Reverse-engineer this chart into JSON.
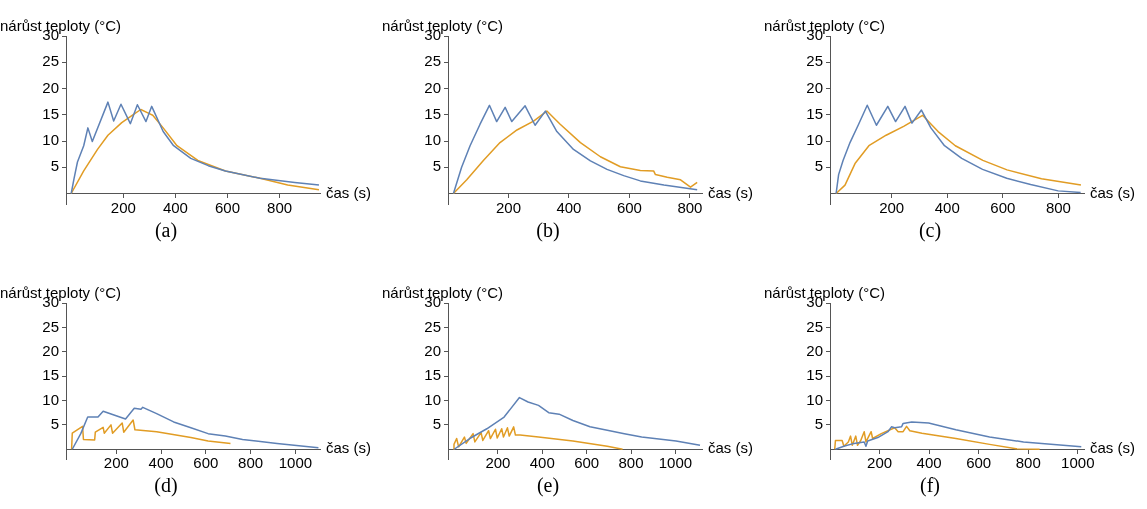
{
  "chart_data": [
    {
      "type": "line",
      "title": "(a)",
      "xlabel": "čas (s)",
      "ylabel": "nárůst teploty (°C)",
      "xlim": [
        -20,
        955
      ],
      "ylim": [
        -2,
        30
      ],
      "xticks": [
        200,
        400,
        600,
        800
      ],
      "yticks": [
        5,
        10,
        15,
        20,
        25,
        30
      ],
      "grid": false,
      "marker": "none",
      "series": [
        {
          "color": "#5e81b5",
          "x": [
            0,
            11,
            24,
            48,
            64,
            81,
            141,
            163,
            191,
            227,
            254,
            287,
            309,
            353,
            393,
            459,
            526,
            592,
            725,
            858,
            951
          ],
          "values": [
            0,
            2.9,
            6.0,
            9.1,
            12.5,
            9.9,
            17.4,
            13.8,
            17.0,
            13.3,
            16.9,
            13.7,
            16.6,
            11.8,
            9.1,
            6.7,
            5.3,
            4.3,
            2.9,
            2.1,
            1.6
          ]
        },
        {
          "color": "#e19c24",
          "x": [
            0,
            48,
            101,
            141,
            194,
            234,
            267,
            300,
            313,
            353,
            406,
            486,
            592,
            725,
            831,
            951
          ],
          "values": [
            0,
            4.3,
            8.4,
            11.1,
            13.5,
            14.9,
            16.0,
            15.2,
            14.9,
            12.5,
            9.1,
            6.3,
            4.3,
            2.9,
            1.6,
            0.7
          ]
        }
      ]
    },
    {
      "type": "line",
      "title": "(b)",
      "xlabel": "čas (s)",
      "ylabel": "nárůst teploty (°C)",
      "xlim": [
        0,
        840
      ],
      "ylim": [
        -2,
        30
      ],
      "xticks": [
        200,
        400,
        600,
        800
      ],
      "yticks": [
        5,
        10,
        15,
        20,
        25,
        30
      ],
      "grid": false,
      "marker": "none",
      "series": [
        {
          "color": "#5e81b5",
          "x": [
            18,
            45,
            73,
            106,
            137,
            161,
            189,
            211,
            255,
            288,
            322,
            360,
            415,
            471,
            526,
            581,
            636,
            714,
            824
          ],
          "values": [
            0,
            5.0,
            9.1,
            13.2,
            16.8,
            13.7,
            16.4,
            13.7,
            16.7,
            13.0,
            15.7,
            11.8,
            8.4,
            6.2,
            4.6,
            3.4,
            2.4,
            1.6,
            0.7
          ]
        },
        {
          "color": "#e19c24",
          "x": [
            18,
            62,
            117,
            172,
            228,
            283,
            327,
            371,
            438,
            504,
            570,
            636,
            680,
            686,
            725,
            769,
            802,
            824
          ],
          "values": [
            0,
            2.6,
            6.3,
            9.7,
            12.1,
            13.8,
            15.7,
            13.2,
            9.7,
            7.0,
            5.1,
            4.4,
            4.3,
            3.6,
            3.1,
            2.6,
            1.2,
            2.1
          ]
        }
      ]
    },
    {
      "type": "line",
      "title": "(c)",
      "xlabel": "čas (s)",
      "ylabel": "nárůst teploty (°C)",
      "xlim": [
        -22,
        892
      ],
      "ylim": [
        -2,
        30
      ],
      "xticks": [
        200,
        400,
        600,
        800
      ],
      "yticks": [
        5,
        10,
        15,
        20,
        25,
        30
      ],
      "grid": false,
      "marker": "none",
      "series": [
        {
          "color": "#5e81b5",
          "x": [
            0,
            9,
            25,
            50,
            81,
            112,
            145,
            186,
            214,
            248,
            273,
            307,
            341,
            390,
            452,
            527,
            614,
            700,
            799,
            880
          ],
          "values": [
            0,
            3.6,
            6.3,
            9.7,
            13.2,
            16.8,
            13.0,
            16.6,
            13.7,
            16.6,
            13.4,
            15.9,
            12.5,
            9.1,
            6.7,
            4.6,
            2.9,
            1.7,
            0.5,
            0.2
          ]
        },
        {
          "color": "#e19c24",
          "x": [
            0,
            32,
            68,
            118,
            180,
            243,
            311,
            367,
            429,
            528,
            615,
            739,
            881
          ],
          "values": [
            0,
            1.6,
            5.7,
            9.1,
            11.1,
            12.8,
            14.9,
            11.8,
            9.1,
            6.3,
            4.5,
            2.8,
            1.6
          ]
        }
      ]
    },
    {
      "type": "line",
      "title": "(d)",
      "xlabel": "čas (s)",
      "ylabel": "nárůst teploty (°C)",
      "xlim": [
        -25,
        1110
      ],
      "ylim": [
        -2,
        30
      ],
      "xticks": [
        200,
        400,
        600,
        800,
        1000
      ],
      "yticks": [
        5,
        10,
        15,
        20,
        25,
        30
      ],
      "grid": false,
      "marker": "none",
      "series": [
        {
          "color": "#5e81b5",
          "x": [
            3,
            41,
            72,
            118,
            141,
            241,
            280,
            310,
            318,
            380,
            456,
            533,
            610,
            687,
            764,
            918,
            1103
          ],
          "values": [
            0,
            3.2,
            6.6,
            6.6,
            7.8,
            6.2,
            8.4,
            8.2,
            8.6,
            7.3,
            5.6,
            4.4,
            3.2,
            2.7,
            2.0,
            1.2,
            0.3
          ]
        },
        {
          "color": "#e19c24",
          "x": [
            0,
            3,
            49,
            53,
            103,
            106,
            141,
            146,
            176,
            183,
            226,
            233,
            275,
            283,
            380,
            533,
            610,
            710
          ],
          "values": [
            0,
            3.3,
            4.7,
            2.0,
            1.9,
            3.5,
            4.5,
            3.3,
            5.0,
            3.3,
            5.4,
            3.5,
            6.0,
            4.0,
            3.6,
            2.4,
            1.7,
            1.2
          ]
        }
      ]
    },
    {
      "type": "line",
      "title": "(e)",
      "xlabel": "čas (s)",
      "ylabel": "nárůst teploty (°C)",
      "xlim": [
        -25,
        1120
      ],
      "ylim": [
        -2,
        30
      ],
      "xticks": [
        200,
        400,
        600,
        800,
        1000
      ],
      "yticks": [
        5,
        10,
        15,
        20,
        25,
        30
      ],
      "grid": false,
      "marker": "none",
      "series": [
        {
          "color": "#5e81b5",
          "x": [
            3,
            73,
            150,
            228,
            297,
            336,
            383,
            429,
            476,
            538,
            615,
            693,
            770,
            848,
            1003,
            1111
          ],
          "values": [
            0,
            2.2,
            4.2,
            6.6,
            10.6,
            9.7,
            9.0,
            7.5,
            7.2,
            5.9,
            4.6,
            3.9,
            3.2,
            2.5,
            1.7,
            0.8
          ]
        },
        {
          "color": "#e19c24",
          "x": [
            0,
            2,
            14,
            23,
            49,
            57,
            88,
            96,
            124,
            132,
            158,
            166,
            189,
            197,
            217,
            225,
            243,
            251,
            271,
            279,
            300,
            383,
            538,
            693,
            762
          ],
          "values": [
            0,
            1.0,
            2.2,
            0.5,
            2.5,
            1.2,
            3.2,
            1.5,
            3.4,
            1.8,
            3.8,
            2.2,
            4.1,
            2.3,
            4.2,
            2.5,
            4.4,
            2.7,
            4.6,
            2.9,
            2.9,
            2.5,
            1.7,
            0.6,
            0
          ]
        }
      ]
    },
    {
      "type": "line",
      "title": "(f)",
      "xlabel": "čas (s)",
      "ylabel": "nárůst teploty (°C)",
      "xlim": [
        0,
        1025
      ],
      "ylim": [
        -2,
        30
      ],
      "xticks": [
        200,
        400,
        600,
        800,
        1000
      ],
      "yticks": [
        5,
        10,
        15,
        20,
        25,
        30
      ],
      "grid": false,
      "marker": "none",
      "series": [
        {
          "color": "#5e81b5",
          "x": [
            22,
            56,
            97,
            138,
            145,
            152,
            193,
            234,
            248,
            261,
            289,
            295,
            330,
            398,
            508,
            644,
            781,
            1014
          ],
          "values": [
            0,
            0.6,
            1.2,
            1.5,
            0.6,
            1.7,
            2.4,
            3.6,
            4.6,
            4.4,
            4.6,
            5.3,
            5.6,
            5.4,
            4.0,
            2.5,
            1.5,
            0.5
          ]
        },
        {
          "color": "#e19c24",
          "x": [
            19,
            22,
            49,
            56,
            74,
            83,
            90,
            104,
            111,
            124,
            138,
            145,
            166,
            172,
            207,
            261,
            275,
            295,
            309,
            322,
            371,
            508,
            644,
            751,
            846
          ],
          "values": [
            0,
            1.8,
            1.8,
            0.6,
            1.5,
            2.7,
            0.8,
            2.7,
            0.8,
            1.8,
            3.6,
            1.5,
            3.6,
            2.2,
            3.2,
            4.4,
            3.6,
            3.6,
            4.7,
            3.8,
            3.3,
            2.2,
            1.0,
            0.1,
            0
          ]
        }
      ]
    }
  ]
}
